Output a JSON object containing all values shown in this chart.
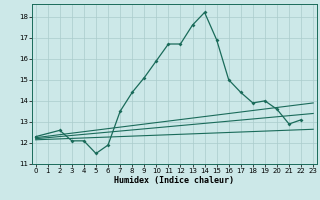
{
  "bg_color": "#cce8e8",
  "grid_color": "#aacccc",
  "line_color": "#1a6b5a",
  "xlim": [
    -0.3,
    23.3
  ],
  "ylim": [
    11,
    18.6
  ],
  "yticks": [
    11,
    12,
    13,
    14,
    15,
    16,
    17,
    18
  ],
  "xticks": [
    0,
    1,
    2,
    3,
    4,
    5,
    6,
    7,
    8,
    9,
    10,
    11,
    12,
    13,
    14,
    15,
    16,
    17,
    18,
    19,
    20,
    21,
    22,
    23
  ],
  "xlabel": "Humidex (Indice chaleur)",
  "main_x": [
    0,
    2,
    3,
    4,
    5,
    6,
    7,
    8,
    9,
    10,
    11,
    12,
    13,
    14,
    15,
    16,
    17,
    18,
    19,
    20,
    21,
    22
  ],
  "main_y": [
    12.3,
    12.6,
    12.1,
    12.1,
    11.5,
    11.9,
    13.5,
    14.4,
    15.1,
    15.9,
    16.7,
    16.7,
    17.6,
    18.2,
    16.9,
    15.0,
    14.4,
    13.9,
    14.0,
    13.6,
    12.9,
    13.1
  ],
  "line1_x": [
    0,
    23
  ],
  "line1_y": [
    12.25,
    13.9
  ],
  "line2_x": [
    0,
    23
  ],
  "line2_y": [
    12.2,
    13.4
  ],
  "line3_x": [
    0,
    23
  ],
  "line3_y": [
    12.15,
    12.65
  ]
}
